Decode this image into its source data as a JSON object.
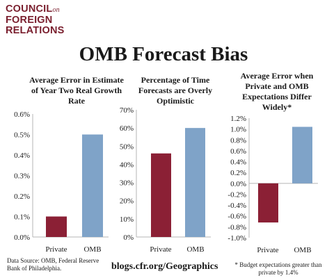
{
  "logo": {
    "line1": "COUNCIL",
    "on": "on",
    "line2": "FOREIGN",
    "line3": "RELATIONS"
  },
  "main_title": "OMB Forecast Bias",
  "source": "Data Source: OMB, Federal Reserve Bank of Philadelphia.",
  "url": "blogs.cfr.org/Geographics",
  "footnote": "* Budget expectations greater than private by 1.4%",
  "colors": {
    "private": "#8b2035",
    "omb": "#7fa3c8"
  },
  "chart_data": [
    {
      "type": "bar",
      "title": "Average Error in Estimate of Year Two Real Growth Rate",
      "categories": [
        "Private",
        "OMB"
      ],
      "values": [
        0.1,
        0.5
      ],
      "ylim": [
        0,
        0.6
      ],
      "yticks": [
        "0.0%",
        "0.1%",
        "0.2%",
        "0.3%",
        "0.4%",
        "0.5%",
        "0.6%"
      ],
      "ytick_values": [
        0,
        0.1,
        0.2,
        0.3,
        0.4,
        0.5,
        0.6
      ],
      "grid": false
    },
    {
      "type": "bar",
      "title": "Percentage of Time Forecasts are Overly Optimistic",
      "categories": [
        "Private",
        "OMB"
      ],
      "values": [
        46,
        60
      ],
      "ylim": [
        0,
        70
      ],
      "yticks": [
        "0%",
        "10%",
        "20%",
        "30%",
        "40%",
        "50%",
        "60%",
        "70%"
      ],
      "ytick_values": [
        0,
        10,
        20,
        30,
        40,
        50,
        60,
        70
      ],
      "grid": false
    },
    {
      "type": "bar",
      "title": "Average Error when Private and OMB Expectations Differ Widely*",
      "categories": [
        "Private",
        "OMB"
      ],
      "values": [
        -0.72,
        1.04
      ],
      "ylim": [
        -1.0,
        1.2
      ],
      "yticks": [
        "-1.0%",
        "-0.8%",
        "-0.6%",
        "-0.4%",
        "-0.2%",
        "0.0%",
        "0.2%",
        "0.4%",
        "0.6%",
        "0.8%",
        "1.0%",
        "1.2%"
      ],
      "ytick_values": [
        -1.0,
        -0.8,
        -0.6,
        -0.4,
        -0.2,
        0,
        0.2,
        0.4,
        0.6,
        0.8,
        1.0,
        1.2
      ],
      "grid": false
    }
  ]
}
